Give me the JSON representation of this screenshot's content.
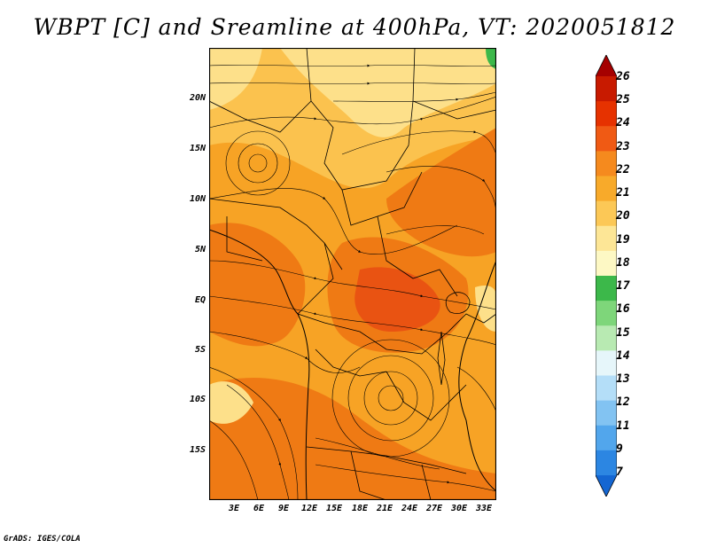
{
  "title": "WBPT [C] and Sreamline at 400hPa, VT: 2020051812",
  "footer": "GrADS: IGES/COLA",
  "map": {
    "lat_labels": [
      "20N",
      "15N",
      "10N",
      "5N",
      "EQ",
      "5S",
      "10S",
      "15S"
    ],
    "lon_labels": [
      "3E",
      "6E",
      "9E",
      "12E",
      "15E",
      "18E",
      "21E",
      "24E",
      "27E",
      "30E",
      "33E"
    ],
    "fill_colors": {
      "c19": "#fde08a",
      "c20": "#fbc24e",
      "c21": "#f7a325",
      "c22": "#ef7a14",
      "c23": "#e95312",
      "green": "#3cb84a"
    }
  },
  "colorbar": {
    "labels": [
      "26",
      "25",
      "24",
      "23",
      "22",
      "21",
      "20",
      "19",
      "18",
      "17",
      "16",
      "15",
      "14",
      "13",
      "12",
      "11",
      "9",
      "7"
    ],
    "colors": [
      "#a50000",
      "#c81a00",
      "#e63200",
      "#f05a14",
      "#f58a1e",
      "#f8aa2a",
      "#fcc856",
      "#fde696",
      "#fdf8c4",
      "#3cb84a",
      "#7ed67a",
      "#b8eab2",
      "#e6f6fa",
      "#b4def8",
      "#82c3f2",
      "#52a6ec",
      "#2c86e2",
      "#1466d2"
    ]
  }
}
